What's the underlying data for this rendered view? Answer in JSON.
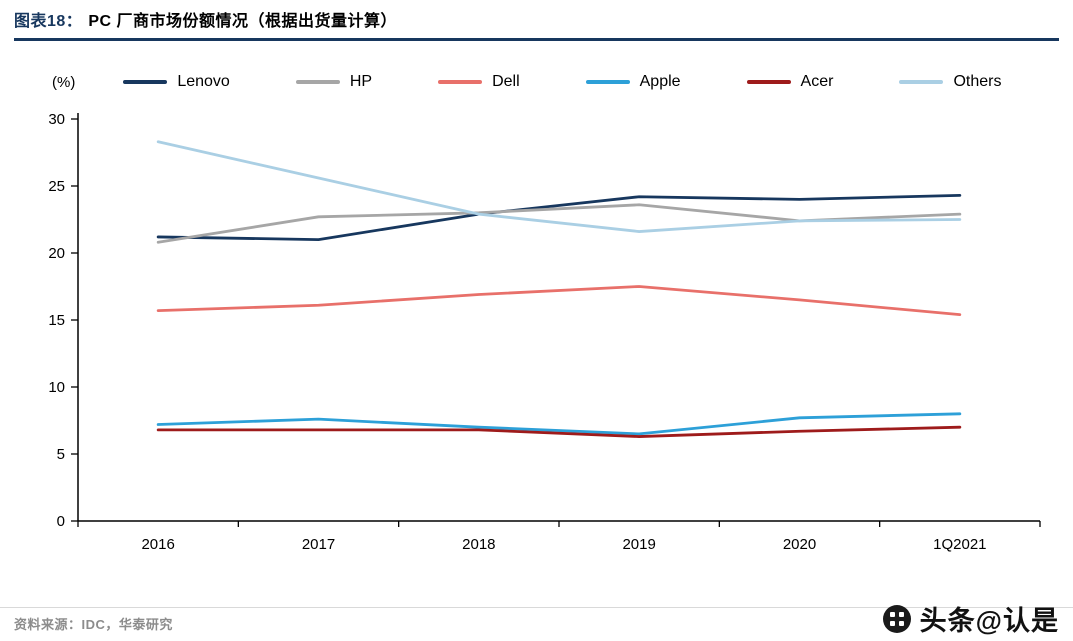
{
  "header": {
    "label": "图表18：",
    "title": "PC 厂商市场份额情况（根据出货量计算）"
  },
  "chart_data": {
    "type": "line",
    "title": "PC 厂商市场份额情况（根据出货量计算）",
    "unit_label": "(%)",
    "categories": [
      "2016",
      "2017",
      "2018",
      "2019",
      "2020",
      "1Q2021"
    ],
    "series": [
      {
        "name": "Lenovo",
        "color": "#17375e",
        "values": [
          21.2,
          21.0,
          22.9,
          24.2,
          24.0,
          24.3
        ]
      },
      {
        "name": "HP",
        "color": "#a6a6a6",
        "values": [
          20.8,
          22.7,
          23.0,
          23.6,
          22.4,
          22.9
        ]
      },
      {
        "name": "Dell",
        "color": "#e8706a",
        "values": [
          15.7,
          16.1,
          16.9,
          17.5,
          16.5,
          15.4
        ]
      },
      {
        "name": "Apple",
        "color": "#2da0d8",
        "values": [
          7.2,
          7.6,
          7.0,
          6.5,
          7.7,
          8.0
        ]
      },
      {
        "name": "Acer",
        "color": "#9e1b1b",
        "values": [
          6.8,
          6.8,
          6.8,
          6.3,
          6.7,
          7.0
        ]
      },
      {
        "name": "Others",
        "color": "#aacfe4",
        "values": [
          28.3,
          25.6,
          22.9,
          21.6,
          22.4,
          22.5
        ]
      }
    ],
    "ylim": [
      0,
      30
    ],
    "ytick_step": 5,
    "grid": false,
    "legend_position": "top",
    "xlabel": "",
    "ylabel": "(%)"
  },
  "footer": {
    "source": "资料来源：IDC，华泰研究",
    "watermark": "头条@认是"
  }
}
